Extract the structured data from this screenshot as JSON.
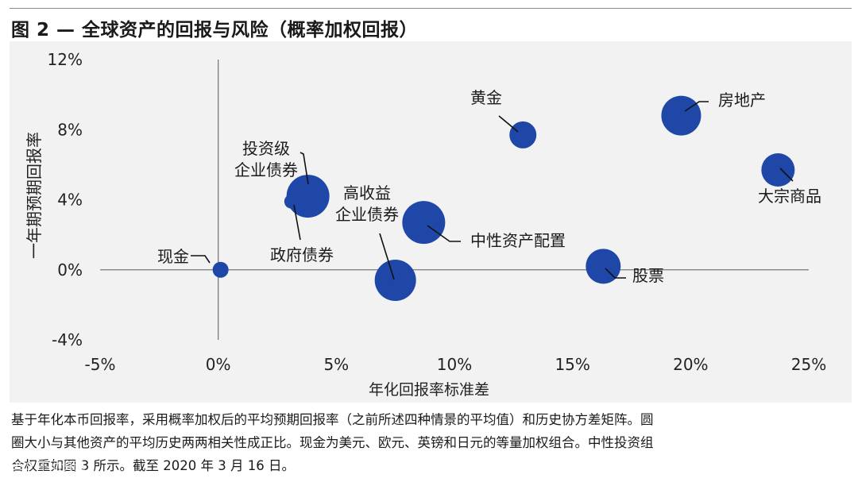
{
  "figure": {
    "title": "图 2 — 全球资产的回报与风险（概率加权回报）",
    "notes": [
      "基于年化本币回报率，采用概率加权后的平均预期回报率（之前所述四种情景的平均值）和历史协方差矩阵。圆",
      "圈大小与其他资产的平均历史两两相关性成正比。现金为美元、欧元、英镑和日元的等量加权组合。中性投资组",
      "合权重如图 3  所示。截至 2020 年 3 月 16 日。"
    ],
    "watermark": "1999 不动资讯"
  },
  "chart_data": {
    "type": "scatter",
    "xlabel": "年化回报率标准差",
    "ylabel": "一年期预期回报率",
    "xlim": [
      -5,
      25
    ],
    "ylim": [
      -4,
      12
    ],
    "x_ticks": [
      -5,
      0,
      5,
      10,
      15,
      20,
      25
    ],
    "y_ticks": [
      -4,
      0,
      4,
      8,
      12
    ],
    "x_tick_labels": [
      "-5%",
      "0%",
      "5%",
      "10%",
      "15%",
      "20%",
      "25%"
    ],
    "y_tick_labels": [
      "-4%",
      "0%",
      "4%",
      "8%",
      "12%"
    ],
    "grid": false,
    "bubble_color": "#1f47a8",
    "points": [
      {
        "label": "现金",
        "x": 0.1,
        "y": 0.0,
        "size": 10
      },
      {
        "label": "政府债券",
        "x": 3.1,
        "y": 3.9,
        "size": 9
      },
      {
        "label": "投资级\n企业债券",
        "x": 3.8,
        "y": 4.2,
        "size": 27
      },
      {
        "label": "高收益\n企业债券",
        "x": 7.5,
        "y": -0.6,
        "size": 26
      },
      {
        "label": "中性资产配置",
        "x": 8.7,
        "y": 2.7,
        "size": 27
      },
      {
        "label": "黄金",
        "x": 12.9,
        "y": 7.7,
        "size": 17
      },
      {
        "label": "股票",
        "x": 16.3,
        "y": 0.2,
        "size": 22
      },
      {
        "label": "房地产",
        "x": 19.6,
        "y": 8.8,
        "size": 25
      },
      {
        "label": "大宗商品",
        "x": 23.7,
        "y": 5.7,
        "size": 21
      }
    ]
  }
}
